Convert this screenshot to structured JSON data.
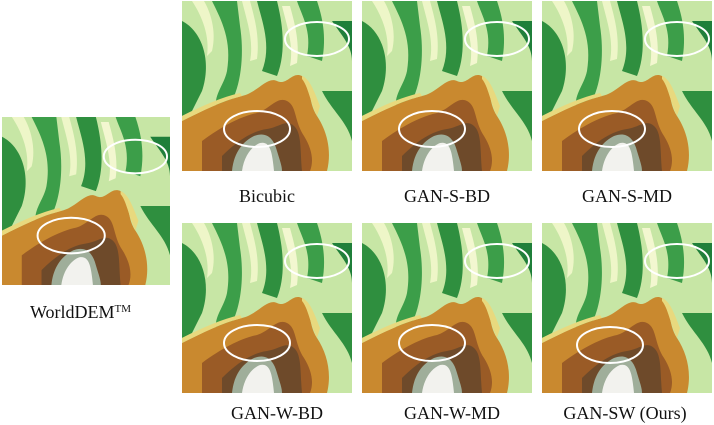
{
  "figure": {
    "captions": {
      "reference": "WorldDEM",
      "reference_superscript": "TM",
      "bicubic": "Bicubic",
      "gan_s_bd": "GAN-S-BD",
      "gan_s_md": "GAN-S-MD",
      "gan_w_bd": "GAN-W-BD",
      "gan_w_md": "GAN-W-MD",
      "gan_sw": "GAN-SW (Ours)"
    },
    "colors": {
      "high_elevation": "#f2f2ee",
      "upper": "#9fae9a",
      "brown_high": "#6e4a2a",
      "brown": "#9a5b26",
      "orange": "#c9892f",
      "yellow": "#e8d97e",
      "light_green": "#c7e6a5",
      "green": "#3c9e49",
      "dark_green": "#1f7f3a",
      "annotation_ellipse": "#ffffff"
    },
    "annotation_shape": "ellipse"
  }
}
